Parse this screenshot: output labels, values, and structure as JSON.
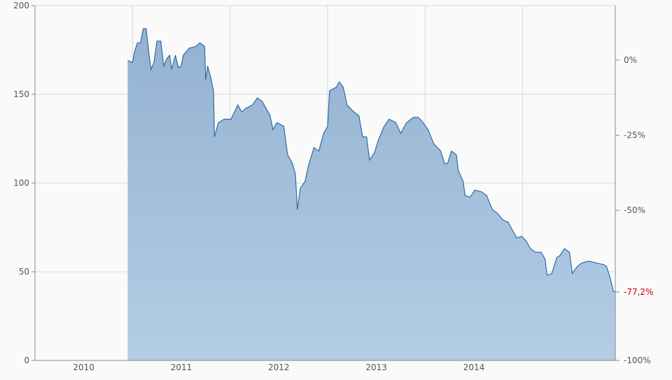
{
  "chart_data": {
    "type": "area",
    "title": "",
    "xlabel": "",
    "ylabel": "",
    "x_tick_labels": [
      "2010",
      "2011",
      "2012",
      "2013",
      "2014"
    ],
    "xlim": [
      2010,
      2016
    ],
    "ylim": [
      0,
      200
    ],
    "y_ticks": [
      0,
      50,
      100,
      150,
      200
    ],
    "right_axis": {
      "reference_value": 169.3,
      "ticks": [
        {
          "label": "0%",
          "percent": 0
        },
        {
          "label": "-25%",
          "percent": -25
        },
        {
          "label": "-50%",
          "percent": -50
        },
        {
          "label": "-77,2%",
          "percent": -77.2,
          "highlight": true
        },
        {
          "label": "-100%",
          "percent": -100
        }
      ]
    },
    "grid": true,
    "colors": {
      "line": "#2f6aa8",
      "fill_top": "#93b2d1",
      "fill_bottom": "#b4cde5",
      "highlight": "#cc0000",
      "grid": "#d9d9d9",
      "axis": "#888888"
    },
    "series": [
      {
        "x": [
          2010.95,
          2011.0,
          2011.02,
          2011.05,
          2011.08,
          2011.11,
          2011.14,
          2011.17,
          2011.19,
          2011.22,
          2011.25,
          2011.29,
          2011.32,
          2011.35,
          2011.38,
          2011.4,
          2011.44,
          2011.47,
          2011.5,
          2011.52,
          2011.58,
          2011.65,
          2011.69,
          2011.74,
          2011.75,
          2011.77,
          2011.8,
          2011.83,
          2011.84,
          2011.88,
          2011.94,
          2012.01,
          2012.08,
          2012.12,
          2012.16,
          2012.23,
          2012.28,
          2012.33,
          2012.41,
          2012.44,
          2012.48,
          2012.55,
          2012.59,
          2012.64,
          2012.67,
          2012.69,
          2012.72,
          2012.77,
          2012.8,
          2012.86,
          2012.91,
          2012.96,
          2013.0,
          2013.02,
          2013.09,
          2013.12,
          2013.16,
          2013.2,
          2013.27,
          2013.32,
          2013.36,
          2013.4,
          2013.43,
          2013.48,
          2013.52,
          2013.58,
          2013.63,
          2013.7,
          2013.75,
          2013.81,
          2013.88,
          2013.93,
          2013.98,
          2014.03,
          2014.09,
          2014.16,
          2014.2,
          2014.23,
          2014.27,
          2014.32,
          2014.34,
          2014.39,
          2014.41,
          2014.46,
          2014.51,
          2014.58,
          2014.63,
          2014.69,
          2014.74,
          2014.8,
          2014.85,
          2014.88,
          2014.94,
          2014.99,
          2015.04,
          2015.08,
          2015.13,
          2015.19,
          2015.23,
          2015.25,
          2015.3,
          2015.35,
          2015.38,
          2015.43,
          2015.48,
          2015.51,
          2015.56,
          2015.61,
          2015.68,
          2015.75,
          2015.83,
          2015.86,
          2015.9,
          2015.93,
          2015.95
        ],
        "values": [
          169,
          168,
          174,
          179,
          179,
          187,
          187,
          172,
          164,
          168,
          180,
          180,
          166,
          170,
          172,
          164,
          172,
          165,
          166,
          172,
          176,
          177,
          179,
          177,
          158,
          166,
          160,
          152,
          126,
          134,
          136,
          136,
          144,
          140,
          142,
          144,
          148,
          146,
          138,
          130,
          134,
          132,
          116,
          111,
          105,
          85,
          97,
          101,
          109,
          120,
          118,
          128,
          132,
          152,
          154,
          157,
          154,
          144,
          140,
          138,
          126,
          126,
          113,
          117,
          124,
          132,
          136,
          134,
          128,
          134,
          137,
          137,
          134,
          130,
          122,
          118,
          111,
          111,
          118,
          116,
          107,
          101,
          93,
          92,
          96,
          95,
          93,
          85,
          83,
          79,
          78,
          75,
          69,
          70,
          67,
          63,
          61,
          61,
          57,
          48,
          49,
          58,
          59,
          63,
          61,
          49,
          53,
          55,
          56,
          55,
          54,
          53,
          46,
          39,
          38.6
        ]
      }
    ]
  }
}
